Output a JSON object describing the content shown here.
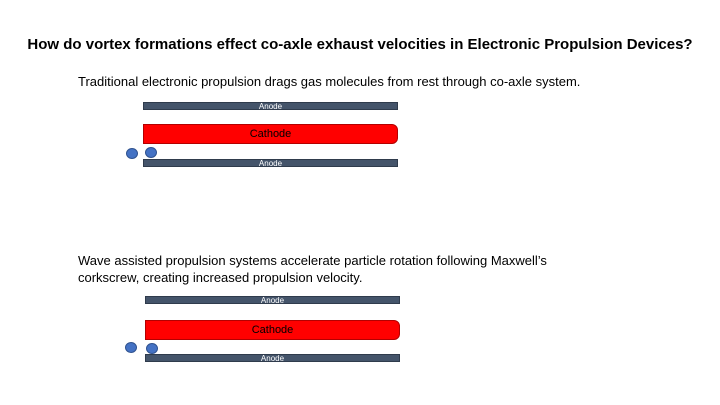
{
  "title": "How do vortex formations effect co-axle exhaust velocities in Electronic Propulsion Devices?",
  "section1": {
    "text": "Traditional electronic propulsion drags gas molecules from rest through co-axle system.",
    "anode_top": "Anode",
    "cathode": "Cathode",
    "anode_bottom": "Anode"
  },
  "section2": {
    "text_line1": "Wave assisted propulsion systems accelerate particle rotation following Maxwell’s",
    "text_line2": "corkscrew, creating increased propulsion velocity.",
    "anode_top": "Anode",
    "cathode": "Cathode",
    "anode_bottom": "Anode"
  },
  "colors": {
    "anode": "#44546a",
    "cathode": "#ff0000",
    "particle": "#4472c4"
  }
}
